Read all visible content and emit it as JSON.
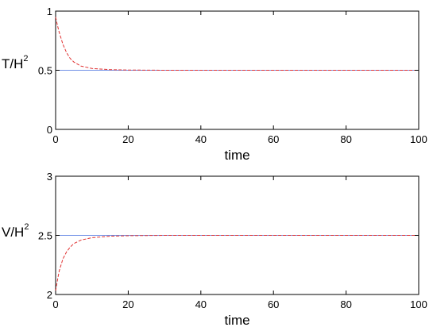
{
  "chart_data": [
    {
      "type": "line",
      "xlabel": "time",
      "ylabel": {
        "main": "T/H",
        "sup": "2"
      },
      "xlim": [
        0,
        100
      ],
      "ylim": [
        0,
        1
      ],
      "xticks": [
        0,
        20,
        40,
        60,
        80,
        100
      ],
      "yticks": [
        0,
        0.5,
        1
      ],
      "yticklabels": [
        "0",
        "0.5",
        "1"
      ],
      "series": [
        {
          "style": "solid",
          "color": "#6f8fe6",
          "x": [
            0,
            100
          ],
          "y": [
            0.5,
            0.5
          ]
        },
        {
          "style": "dashed",
          "color": "#e03030",
          "x": [
            0,
            0.5,
            1,
            2,
            3,
            4,
            5,
            7,
            10,
            15,
            20,
            30,
            40,
            60,
            80,
            100
          ],
          "y": [
            0.95,
            0.88,
            0.82,
            0.72,
            0.65,
            0.6,
            0.57,
            0.535,
            0.515,
            0.505,
            0.502,
            0.5,
            0.5,
            0.5,
            0.5,
            0.5
          ]
        }
      ]
    },
    {
      "type": "line",
      "xlabel": "time",
      "ylabel": {
        "main": "V/H",
        "sup": "2"
      },
      "xlim": [
        0,
        100
      ],
      "ylim": [
        2,
        3
      ],
      "xticks": [
        0,
        20,
        40,
        60,
        80,
        100
      ],
      "yticks": [
        2,
        2.5,
        3
      ],
      "yticklabels": [
        "2",
        "2.5",
        "3"
      ],
      "series": [
        {
          "style": "solid",
          "color": "#6f8fe6",
          "x": [
            0,
            100
          ],
          "y": [
            2.5,
            2.5
          ]
        },
        {
          "style": "dashed",
          "color": "#e03030",
          "x": [
            0,
            0.5,
            1,
            2,
            3,
            4,
            5,
            7,
            10,
            15,
            20,
            30,
            40,
            60,
            80,
            100
          ],
          "y": [
            2.03,
            2.12,
            2.2,
            2.3,
            2.36,
            2.4,
            2.43,
            2.46,
            2.48,
            2.493,
            2.497,
            2.5,
            2.5,
            2.5,
            2.5,
            2.5
          ]
        }
      ]
    }
  ]
}
